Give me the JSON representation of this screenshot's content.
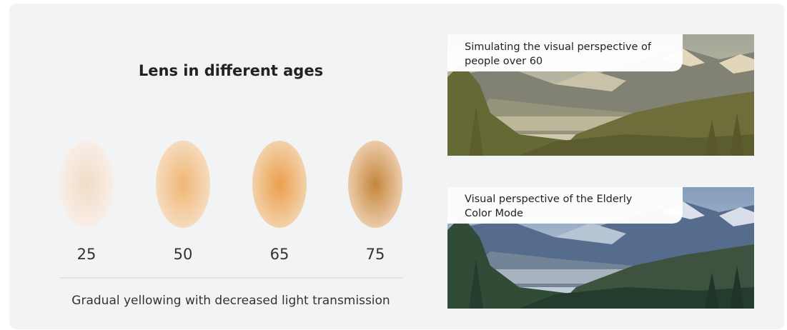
{
  "title": "Lens in different ages",
  "lenses": [
    {
      "age": 25
    },
    {
      "age": 50
    },
    {
      "age": 65
    },
    {
      "age": 75
    }
  ],
  "caption": "Gradual yellowing with decreased light transmission",
  "images": [
    {
      "caption_lines": [
        "Simulating the visual perspective of",
        "people over 60"
      ]
    },
    {
      "caption_lines": [
        "Visual perspective of the Elderly",
        "Color Mode"
      ]
    }
  ]
}
